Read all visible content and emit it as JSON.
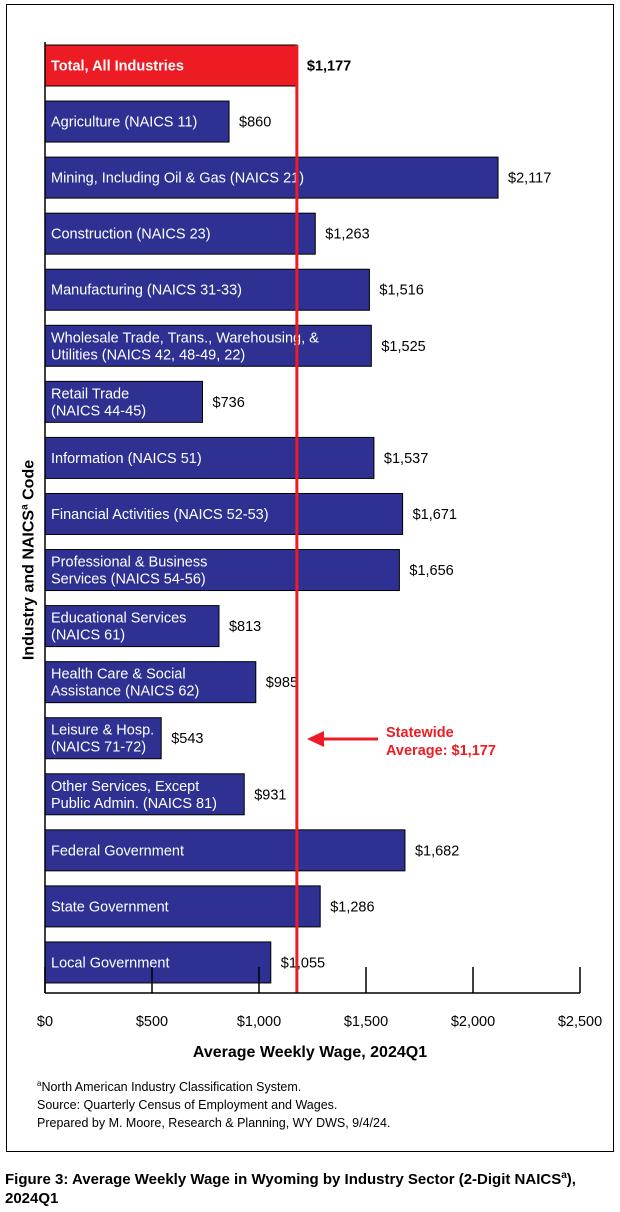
{
  "chart_data": {
    "type": "bar",
    "orientation": "horizontal",
    "categories": [
      [
        "Total, All Industries"
      ],
      [
        "Agriculture (NAICS 11)"
      ],
      [
        "Mining, Including Oil & Gas (NAICS 21)"
      ],
      [
        "Construction (NAICS 23)"
      ],
      [
        "Manufacturing (NAICS 31-33)"
      ],
      [
        "Wholesale Trade, Trans., Warehousing, &",
        "Utilities (NAICS 42, 48-49, 22)"
      ],
      [
        "Retail Trade",
        "(NAICS 44-45)"
      ],
      [
        "Information (NAICS 51)"
      ],
      [
        "Financial Activities (NAICS 52-53)"
      ],
      [
        "Professional & Business",
        "Services (NAICS 54-56)"
      ],
      [
        "Educational Services",
        "(NAICS 61)"
      ],
      [
        "Health Care & Social",
        "Assistance (NAICS 62)"
      ],
      [
        "Leisure & Hosp.",
        "(NAICS 71-72)"
      ],
      [
        "Other Services, Except",
        "Public Admin. (NAICS 81)"
      ],
      [
        "Federal Government"
      ],
      [
        "State Government"
      ],
      [
        "Local Government"
      ]
    ],
    "values": [
      1177,
      860,
      2117,
      1263,
      1516,
      1525,
      736,
      1537,
      1671,
      1656,
      813,
      985,
      543,
      931,
      1682,
      1286,
      1055
    ],
    "value_labels": [
      "$1,177",
      "$860",
      "$2,117",
      "$1,263",
      "$1,516",
      "$1,525",
      "$736",
      "$1,537",
      "$1,671",
      "$1,656",
      "$813",
      "$985",
      "$543",
      "$931",
      "$1,682",
      "$1,286",
      "$1,055"
    ],
    "xlim": [
      0,
      2500
    ],
    "xticks": [
      0,
      500,
      1000,
      1500,
      2000,
      2500
    ],
    "xtick_labels": [
      "$0",
      "$500",
      "$1,000",
      "$1,500",
      "$2,000",
      "$2,500"
    ],
    "xlabel": "Average Weekly Wage, 2024Q1",
    "ylabel": "Industry and NAICS",
    "ylabel_sup": "a",
    "ylabel_suffix": " Code",
    "reference_line": {
      "value": 1177,
      "annotation": [
        "Statewide",
        "Average: $1,177"
      ]
    },
    "colors": {
      "bar": "#2e3192",
      "highlight": "#ed1c24",
      "reference": "#ed1c24"
    }
  },
  "notes": {
    "footnote_sup": "a",
    "footnote": "North American Industry Classification System.",
    "source": "Source: Quarterly Census of Employment and Wages.",
    "prepared": "Prepared by M. Moore, Research & Planning, WY DWS, 9/4/24."
  },
  "caption": {
    "part1": "Figure 3: Average Weekly Wage in Wyoming by Industry Sector (2-Digit NAICS",
    "sup": "a",
    "part2": "), 2024Q1"
  }
}
